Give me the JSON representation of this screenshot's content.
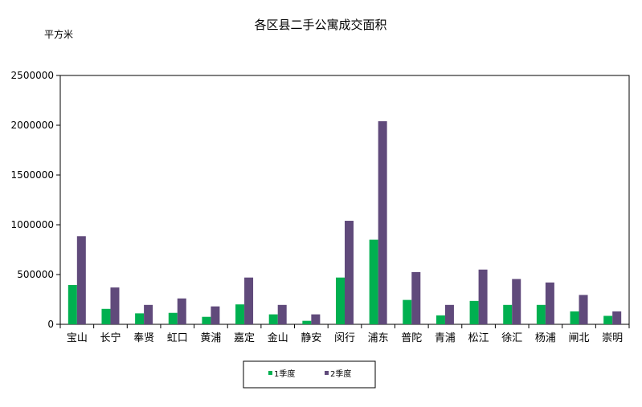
{
  "chart_data": {
    "type": "bar",
    "title": "各区县二手公寓成交面积",
    "ylabel": "平方米",
    "xlabel": "",
    "ylim": [
      0,
      2500000
    ],
    "yticks": [
      0,
      500000,
      1000000,
      1500000,
      2000000,
      2500000
    ],
    "ytick_labels": [
      "0",
      "500000",
      "1000000",
      "1500000",
      "2000000",
      "2500000"
    ],
    "grid": false,
    "legend_position": "bottom-center",
    "categories": [
      "宝山",
      "长宁",
      "奉贤",
      "虹口",
      "黄浦",
      "嘉定",
      "金山",
      "静安",
      "闵行",
      "浦东",
      "普陀",
      "青浦",
      "松江",
      "徐汇",
      "杨浦",
      "闸北",
      "崇明"
    ],
    "series": [
      {
        "name": "1季度",
        "color": "#00B050",
        "values": [
          395000,
          155000,
          110000,
          115000,
          75000,
          200000,
          100000,
          35000,
          470000,
          850000,
          245000,
          90000,
          235000,
          195000,
          195000,
          130000,
          85000
        ]
      },
      {
        "name": "2季度",
        "color": "#604A7B",
        "values": [
          885000,
          370000,
          195000,
          260000,
          180000,
          470000,
          195000,
          100000,
          1040000,
          2040000,
          525000,
          195000,
          550000,
          455000,
          420000,
          295000,
          130000
        ]
      }
    ]
  }
}
